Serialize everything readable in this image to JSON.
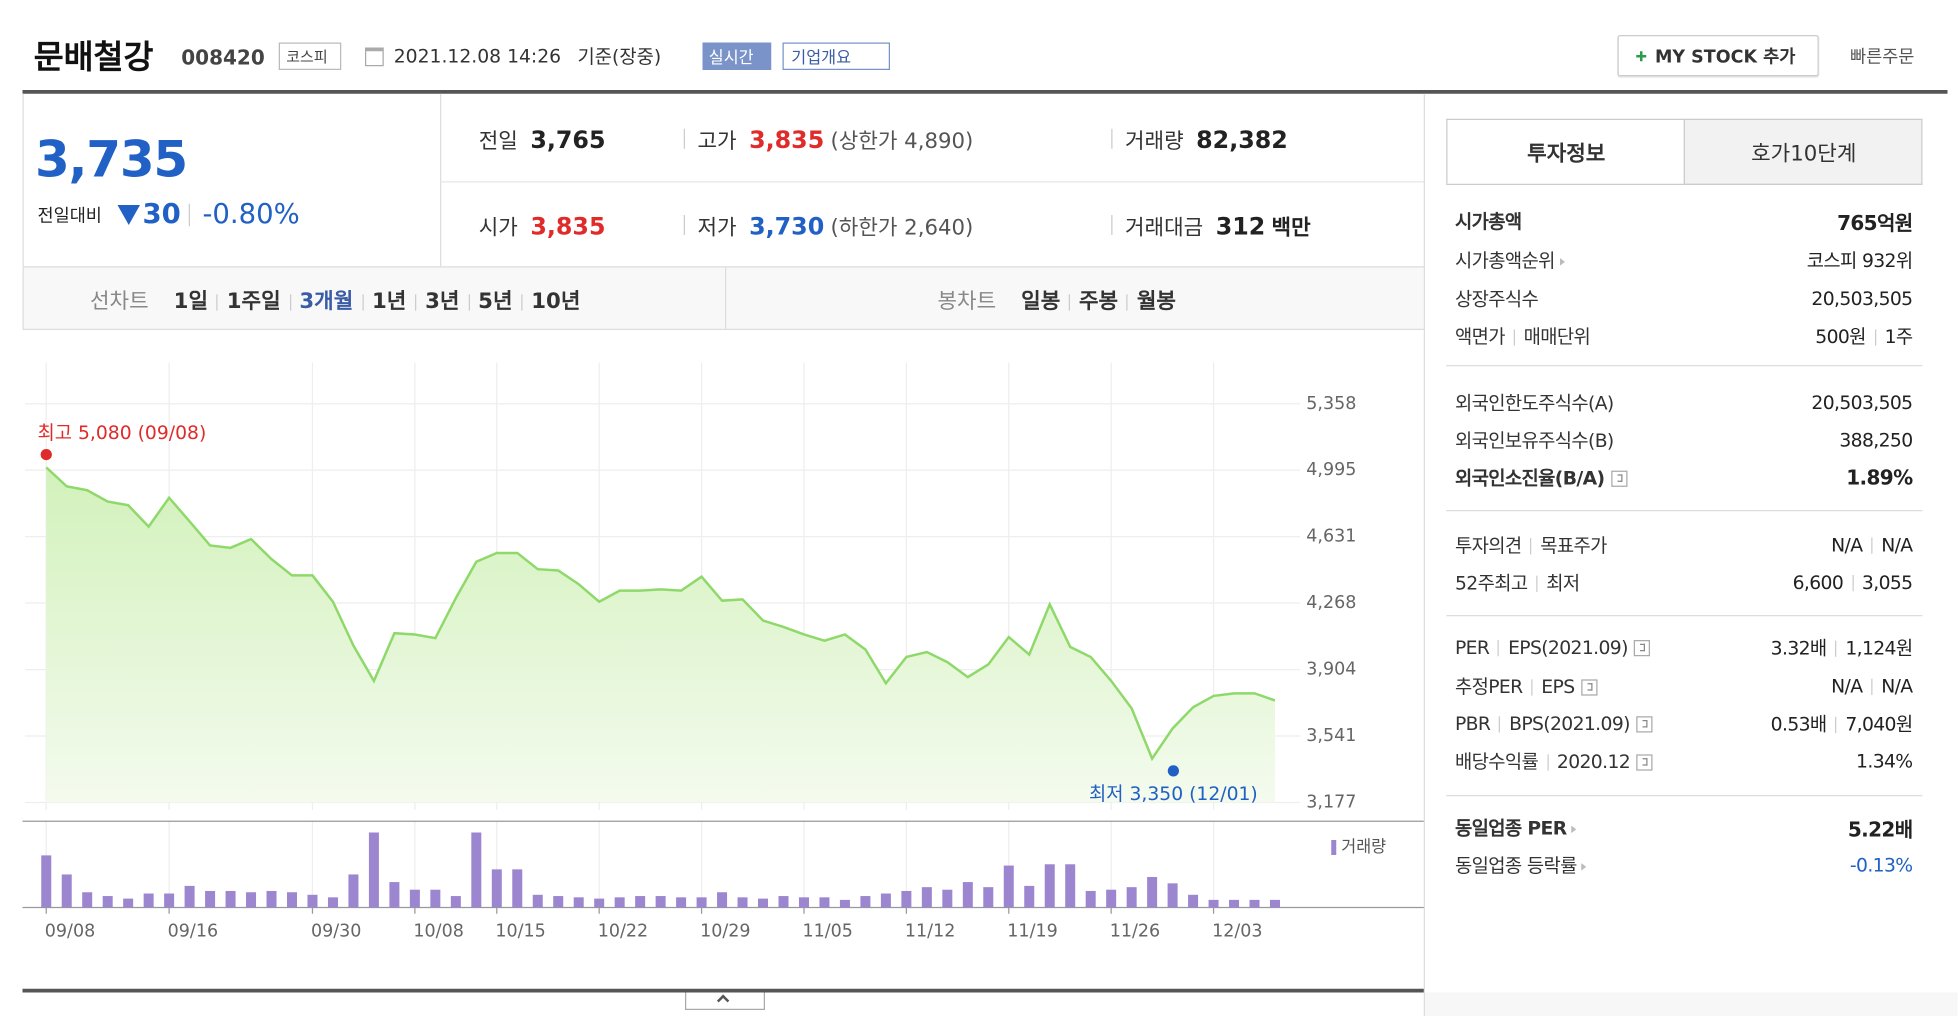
{
  "header": {
    "name": "문배철강",
    "code": "008420",
    "market": "코스피",
    "datetime": "2021.12.08 14:26",
    "basis": "기준(장중)",
    "realtime": "실시간",
    "overview": "기업개요",
    "my_stock": "MY STOCK 추가",
    "quick_order": "빠른주문"
  },
  "quote": {
    "price": "3,735",
    "change_label": "전일대비",
    "change": "30",
    "change_pct": "-0.80%"
  },
  "stats": [
    {
      "label": "전일",
      "value": "3,765"
    },
    {
      "label": "고가",
      "value": "3,835",
      "note": "(상한가 4,890)",
      "color": "#e02b2b"
    },
    {
      "label": "거래량",
      "value": "82,382"
    },
    {
      "label": "시가",
      "value": "3,835",
      "color": "#e02b2b"
    },
    {
      "label": "저가",
      "value": "3,730",
      "note": "(하한가 2,640)",
      "color": "#2160c4"
    },
    {
      "label": "거래대금",
      "value": "312",
      "unit": "백만"
    }
  ],
  "chart_tabs": {
    "line_label": "선차트",
    "line_periods": [
      "1일",
      "1주일",
      "3개월",
      "1년",
      "3년",
      "5년",
      "10년"
    ],
    "candle_label": "봉차트",
    "candle_periods": [
      "일봉",
      "주봉",
      "월봉"
    ]
  },
  "chart_data": {
    "type": "line",
    "categories": [
      "09/08",
      null,
      null,
      null,
      null,
      null,
      "09/16",
      null,
      null,
      null,
      null,
      null,
      null,
      "09/30",
      null,
      null,
      null,
      null,
      "10/08",
      null,
      null,
      null,
      "10/15",
      null,
      null,
      null,
      null,
      "10/22",
      null,
      null,
      null,
      null,
      "10/29",
      null,
      null,
      null,
      null,
      "11/05",
      null,
      null,
      null,
      null,
      "11/12",
      null,
      null,
      null,
      null,
      "11/19",
      null,
      null,
      null,
      null,
      "11/26",
      null,
      null,
      null,
      null,
      "12/03",
      null,
      null,
      null
    ],
    "series": [
      {
        "color": "#8ed96a",
        "values": [
          5010,
          4906,
          4885,
          4823,
          4803,
          4686,
          4844,
          4714,
          4583,
          4570,
          4618,
          4508,
          4419,
          4419,
          4275,
          4035,
          3842,
          4103,
          4096,
          4076,
          4295,
          4494,
          4542,
          4542,
          4453,
          4446,
          4371,
          4275,
          4336,
          4336,
          4343,
          4336,
          4412,
          4281,
          4288,
          4172,
          4137,
          4096,
          4062,
          4096,
          4014,
          3829,
          3973,
          4000,
          3945,
          3863,
          3932,
          4082,
          3986,
          4261,
          4028,
          3973,
          3842,
          3692,
          3417,
          3582,
          3698,
          3760,
          3774,
          3774,
          3735
        ]
      },
      {
        "name": "거래량",
        "type": "bar",
        "color": "#9b86cf",
        "values": [
          820000,
          520000,
          240000,
          180000,
          140000,
          220000,
          220000,
          340000,
          260000,
          260000,
          240000,
          260000,
          240000,
          200000,
          160000,
          520000,
          1180000,
          400000,
          280000,
          280000,
          180000,
          1180000,
          600000,
          600000,
          200000,
          180000,
          160000,
          140000,
          160000,
          180000,
          180000,
          160000,
          160000,
          240000,
          160000,
          140000,
          180000,
          160000,
          160000,
          120000,
          180000,
          220000,
          260000,
          320000,
          280000,
          400000,
          320000,
          660000,
          340000,
          680000,
          680000,
          260000,
          280000,
          320000,
          480000,
          380000,
          200000,
          120000,
          120000,
          120000,
          120000
        ]
      }
    ],
    "ylim": [
      3177,
      5358
    ],
    "yticks": [
      {
        "value": 3177,
        "label": "3,177"
      },
      {
        "value": 3541,
        "label": "3,541"
      },
      {
        "value": 3904,
        "label": "3,904"
      },
      {
        "value": 4268,
        "label": "4,268"
      },
      {
        "value": 4631,
        "label": "4,631"
      },
      {
        "value": 4995,
        "label": "4,995"
      },
      {
        "value": 5358,
        "label": "5,358"
      }
    ],
    "grid": true,
    "annotations": [
      {
        "label": "최고 5,080 (09/08)",
        "value": 5080,
        "color": "#e02b2b"
      },
      {
        "label": "최저 3,350 (12/01)",
        "value": 3350,
        "color": "#2160c4"
      }
    ]
  },
  "sidebar": {
    "tabs": [
      "투자정보",
      "호가10단계"
    ],
    "groups": [
      [
        {
          "label": [
            "시가총액"
          ],
          "value": [
            "765억원"
          ],
          "bold": true
        },
        {
          "label": [
            "시가총액순위"
          ],
          "value": [
            "코스피 932위"
          ],
          "arrow": true
        },
        {
          "label": [
            "상장주식수"
          ],
          "value": [
            "20,503,505"
          ]
        },
        {
          "label": [
            "액면가",
            "매매단위"
          ],
          "value": [
            "500원",
            "1주"
          ]
        }
      ],
      [
        {
          "label": [
            "외국인한도주식수(A)"
          ],
          "value": [
            "20,503,505"
          ]
        },
        {
          "label": [
            "외국인보유주식수(B)"
          ],
          "value": [
            "388,250"
          ]
        },
        {
          "label": [
            "외국인소진율(B/A)"
          ],
          "value": [
            "1.89%"
          ],
          "bold": true,
          "help": true
        }
      ],
      [
        {
          "label": [
            "투자의견",
            "목표주가"
          ],
          "value": [
            "N/A",
            "N/A"
          ]
        },
        {
          "label": [
            "52주최고",
            "최저"
          ],
          "value": [
            "6,600",
            "3,055"
          ]
        }
      ],
      [
        {
          "label": [
            "PER",
            "EPS(2021.09)"
          ],
          "value": [
            "3.32배",
            "1,124원"
          ],
          "help": true
        },
        {
          "label": [
            "추정PER",
            "EPS"
          ],
          "value": [
            "N/A",
            "N/A"
          ],
          "help": true
        },
        {
          "label": [
            "PBR",
            "BPS(2021.09)"
          ],
          "value": [
            "0.53배",
            "7,040원"
          ],
          "help": true
        },
        {
          "label": [
            "배당수익률",
            "2020.12"
          ],
          "value": [
            "1.34%"
          ],
          "help": true
        }
      ],
      [
        {
          "label": [
            "동일업종 PER"
          ],
          "value": [
            "5.22배"
          ],
          "bold": true,
          "arrow": true
        },
        {
          "label": [
            "동일업종 등락률"
          ],
          "value": [
            "-0.13%"
          ],
          "arrow": true,
          "color": "#2160c4"
        }
      ]
    ]
  }
}
